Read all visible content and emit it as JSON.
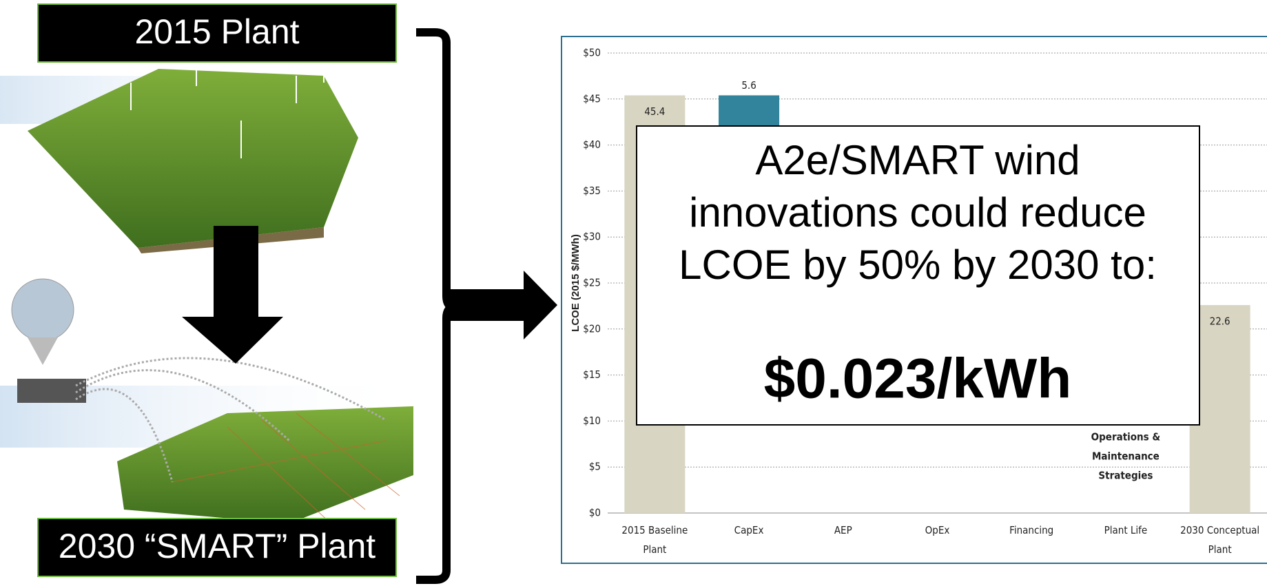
{
  "labels": {
    "plant_2015": "2015 Plant",
    "plant_2030": "2030 “SMART” Plant"
  },
  "callout": {
    "lines": [
      "A2e/SMART wind",
      "innovations could reduce",
      "LCOE by 50% by 2030 to:"
    ],
    "price": "$0.023/kWh"
  },
  "chart_data": {
    "type": "waterfall",
    "y_label": "LCOE (2015 $/MWh)",
    "categories": [
      "2015 Baseline Plant",
      "CapEx",
      "AEP",
      "OpEx",
      "Financing",
      "Plant Life",
      "2030 Conceptual Plant"
    ],
    "values": [
      45.4,
      5.6,
      null,
      null,
      null,
      null,
      22.6
    ],
    "colors": [
      "#d9d5c3",
      "#31849b",
      null,
      null,
      null,
      null,
      "#d9d5c3"
    ],
    "annotation": [
      "Operations &",
      "Maintenance",
      "Strategies"
    ],
    "ylim": [
      0,
      50
    ],
    "yticks": [
      {
        "value": 0,
        "label": "$0"
      },
      {
        "value": 5,
        "label": "$5"
      },
      {
        "value": 10,
        "label": "$10"
      },
      {
        "value": 15,
        "label": "$15"
      },
      {
        "value": 20,
        "label": "$20"
      },
      {
        "value": 25,
        "label": "$25"
      },
      {
        "value": 30,
        "label": "$30"
      },
      {
        "value": 35,
        "label": "$35"
      },
      {
        "value": 40,
        "label": "$40"
      },
      {
        "value": 45,
        "label": "$45"
      },
      {
        "value": 50,
        "label": "$50"
      }
    ],
    "grid": true
  }
}
